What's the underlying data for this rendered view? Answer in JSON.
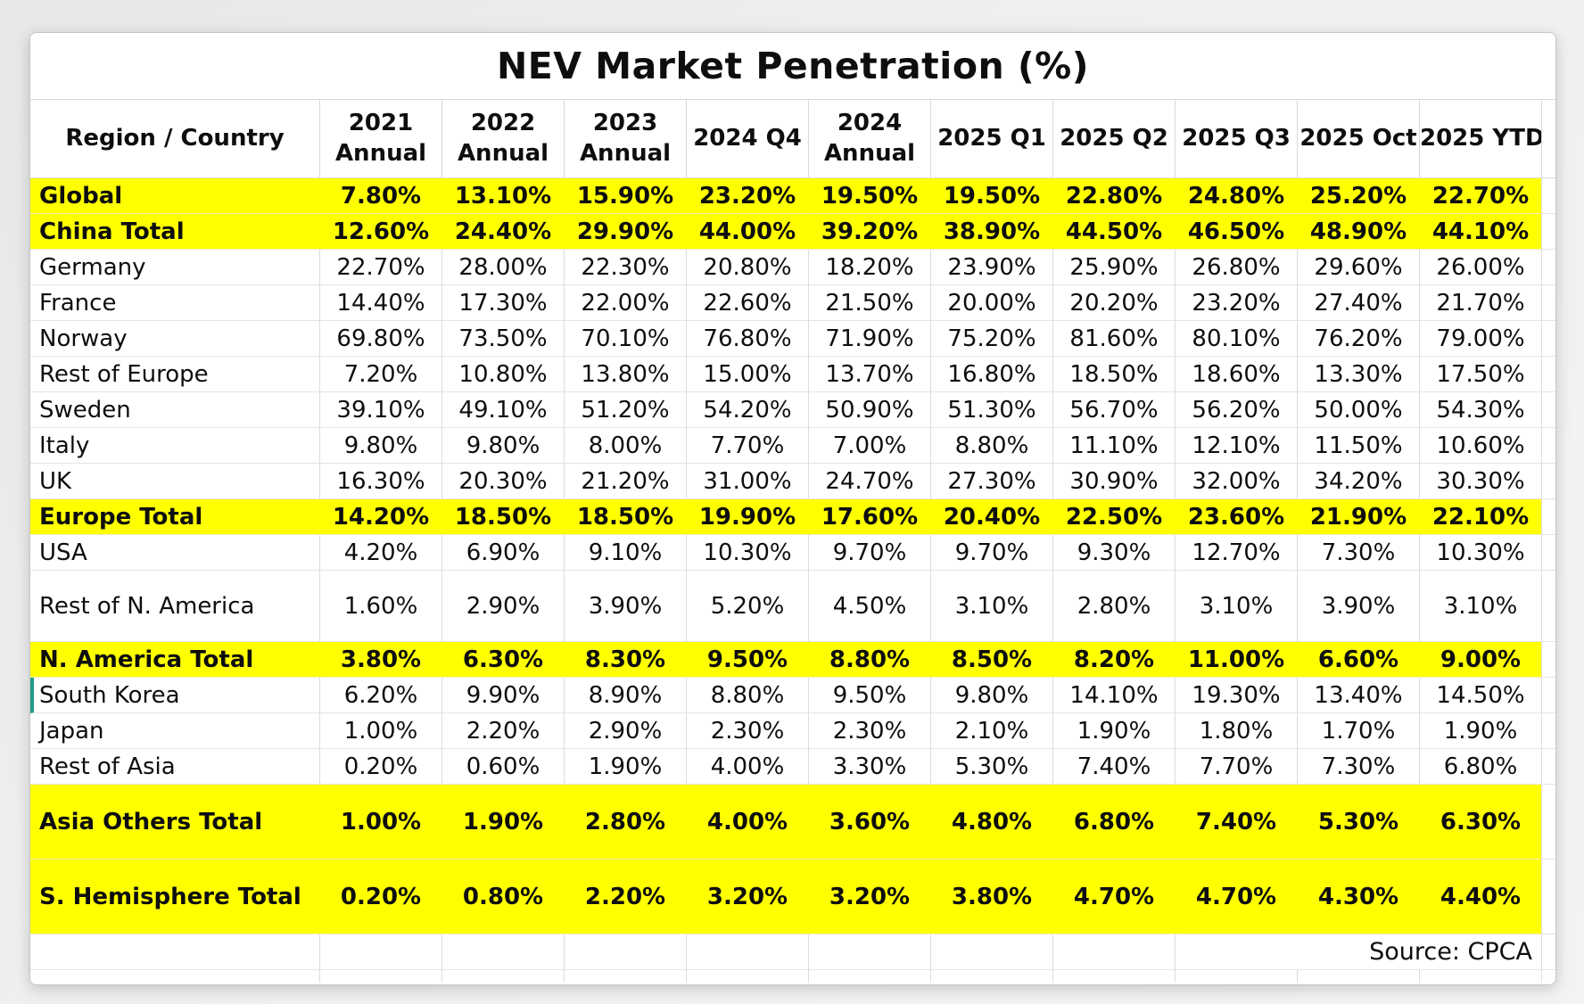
{
  "page": {
    "title": "NEV Market Penetration (%)",
    "source_note": "Source: CPCA"
  },
  "colors": {
    "highlight_yellow": "#ffff00",
    "accent_teal": "#1f9b87",
    "gridline": "#d9d9d9",
    "text": "#0e0e0e",
    "card_background": "#ffffff",
    "page_background": "#ededed"
  },
  "chart_data": {
    "type": "table",
    "title": "NEV Market Penetration (%)",
    "source": "Source: CPCA",
    "legend_position": "none",
    "grid": true,
    "columns": [
      {
        "lines": [
          "Region / Country"
        ]
      },
      {
        "lines": [
          "2021",
          "Annual"
        ]
      },
      {
        "lines": [
          "2022",
          "Annual"
        ]
      },
      {
        "lines": [
          "2023",
          "Annual"
        ]
      },
      {
        "lines": [
          "2024 Q4"
        ]
      },
      {
        "lines": [
          "2024",
          "Annual"
        ]
      },
      {
        "lines": [
          "2025 Q1"
        ]
      },
      {
        "lines": [
          "2025 Q2"
        ]
      },
      {
        "lines": [
          "2025 Q3"
        ]
      },
      {
        "lines": [
          "2025 Oct"
        ]
      },
      {
        "lines": [
          "2025 YTD"
        ]
      }
    ],
    "rows": [
      {
        "label": "Global",
        "values": [
          "7.80%",
          "13.10%",
          "15.90%",
          "23.20%",
          "19.50%",
          "19.50%",
          "22.80%",
          "24.80%",
          "25.20%",
          "22.70%"
        ],
        "highlight": true,
        "bold": true
      },
      {
        "label": "China Total",
        "values": [
          "12.60%",
          "24.40%",
          "29.90%",
          "44.00%",
          "39.20%",
          "38.90%",
          "44.50%",
          "46.50%",
          "48.90%",
          "44.10%"
        ],
        "highlight": true,
        "bold": true
      },
      {
        "label": "Germany",
        "values": [
          "22.70%",
          "28.00%",
          "22.30%",
          "20.80%",
          "18.20%",
          "23.90%",
          "25.90%",
          "26.80%",
          "29.60%",
          "26.00%"
        ]
      },
      {
        "label": "France",
        "values": [
          "14.40%",
          "17.30%",
          "22.00%",
          "22.60%",
          "21.50%",
          "20.00%",
          "20.20%",
          "23.20%",
          "27.40%",
          "21.70%"
        ]
      },
      {
        "label": "Norway",
        "values": [
          "69.80%",
          "73.50%",
          "70.10%",
          "76.80%",
          "71.90%",
          "75.20%",
          "81.60%",
          "80.10%",
          "76.20%",
          "79.00%"
        ]
      },
      {
        "label": "Rest of Europe",
        "values": [
          "7.20%",
          "10.80%",
          "13.80%",
          "15.00%",
          "13.70%",
          "16.80%",
          "18.50%",
          "18.60%",
          "13.30%",
          "17.50%"
        ]
      },
      {
        "label": "Sweden",
        "values": [
          "39.10%",
          "49.10%",
          "51.20%",
          "54.20%",
          "50.90%",
          "51.30%",
          "56.70%",
          "56.20%",
          "50.00%",
          "54.30%"
        ]
      },
      {
        "label": "Italy",
        "values": [
          "9.80%",
          "9.80%",
          "8.00%",
          "7.70%",
          "7.00%",
          "8.80%",
          "11.10%",
          "12.10%",
          "11.50%",
          "10.60%"
        ]
      },
      {
        "label": "UK",
        "values": [
          "16.30%",
          "20.30%",
          "21.20%",
          "31.00%",
          "24.70%",
          "27.30%",
          "30.90%",
          "32.00%",
          "34.20%",
          "30.30%"
        ]
      },
      {
        "label": "Europe Total",
        "values": [
          "14.20%",
          "18.50%",
          "18.50%",
          "19.90%",
          "17.60%",
          "20.40%",
          "22.50%",
          "23.60%",
          "21.90%",
          "22.10%"
        ],
        "highlight": true,
        "bold": true
      },
      {
        "label": "USA",
        "values": [
          "4.20%",
          "6.90%",
          "9.10%",
          "10.30%",
          "9.70%",
          "9.70%",
          "9.30%",
          "12.70%",
          "7.30%",
          "10.30%"
        ]
      },
      {
        "label": "Rest of N. America",
        "values": [
          "1.60%",
          "2.90%",
          "3.90%",
          "5.20%",
          "4.50%",
          "3.10%",
          "2.80%",
          "3.10%",
          "3.90%",
          "3.10%"
        ],
        "tall": true
      },
      {
        "label": "N. America Total",
        "values": [
          "3.80%",
          "6.30%",
          "8.30%",
          "9.50%",
          "8.80%",
          "8.50%",
          "8.20%",
          "11.00%",
          "6.60%",
          "9.00%"
        ],
        "highlight": true,
        "bold": true
      },
      {
        "label": "South Korea",
        "values": [
          "6.20%",
          "9.90%",
          "8.90%",
          "8.80%",
          "9.50%",
          "9.80%",
          "14.10%",
          "19.30%",
          "13.40%",
          "14.50%"
        ],
        "accent": true
      },
      {
        "label": "Japan",
        "values": [
          "1.00%",
          "2.20%",
          "2.90%",
          "2.30%",
          "2.30%",
          "2.10%",
          "1.90%",
          "1.80%",
          "1.70%",
          "1.90%"
        ]
      },
      {
        "label": "Rest of Asia",
        "values": [
          "0.20%",
          "0.60%",
          "1.90%",
          "4.00%",
          "3.30%",
          "5.30%",
          "7.40%",
          "7.70%",
          "7.30%",
          "6.80%"
        ]
      },
      {
        "label": "Asia Others Total",
        "values": [
          "1.00%",
          "1.90%",
          "2.80%",
          "4.00%",
          "3.60%",
          "4.80%",
          "6.80%",
          "7.40%",
          "5.30%",
          "6.30%"
        ],
        "highlight": true,
        "bold": true,
        "tall2": true
      },
      {
        "label": "S. Hemisphere Total",
        "values": [
          "0.20%",
          "0.80%",
          "2.20%",
          "3.20%",
          "3.20%",
          "3.80%",
          "4.70%",
          "4.70%",
          "4.30%",
          "4.40%"
        ],
        "highlight": true,
        "bold": true,
        "tall2": true
      }
    ]
  }
}
